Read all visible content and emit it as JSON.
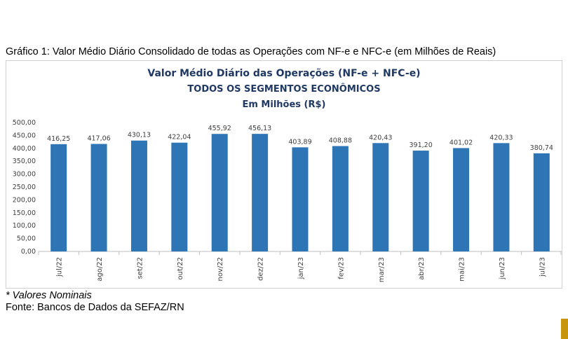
{
  "caption": "Gráfico 1: Valor Médio Diário Consolidado de todas as Operações com NF-e e NFC-e (em Milhões de Reais)",
  "note": "* Valores Nominais",
  "source": "Fonte: Bancos de Dados da SEFAZ/RN",
  "colors": {
    "bar": "#2e75b6",
    "title": "#1f3864",
    "accent": "#c8960c"
  },
  "chart_data": {
    "type": "bar",
    "title": "Valor Médio Diário das Operações (NF-e + NFC-e)",
    "subtitle": "TODOS OS SEGMENTOS ECONÔMICOS",
    "subtitle2": "Em Milhões (R$)",
    "categories": [
      "jul/22",
      "ago/22",
      "set/22",
      "out/22",
      "nov/22",
      "dez/22",
      "jan/23",
      "fev/23",
      "mar/23",
      "abr/23",
      "mai/23",
      "jun/23",
      "jul/23"
    ],
    "values": [
      416.25,
      417.06,
      430.13,
      422.04,
      455.92,
      456.13,
      403.89,
      408.88,
      420.43,
      391.2,
      401.02,
      420.33,
      380.74
    ],
    "data_labels": [
      "416,25",
      "417,06",
      "430,13",
      "422,04",
      "455,92",
      "456,13",
      "403,89",
      "408,88",
      "420,43",
      "391,20",
      "401,02",
      "420,33",
      "380,74"
    ],
    "y_ticks": [
      "0,00",
      "50,00",
      "100,00",
      "150,00",
      "200,00",
      "250,00",
      "300,00",
      "350,00",
      "400,00",
      "450,00",
      "500,00"
    ],
    "ylim": [
      0,
      500
    ],
    "xlabel": "",
    "ylabel": "",
    "grid": false,
    "legend": "none"
  }
}
